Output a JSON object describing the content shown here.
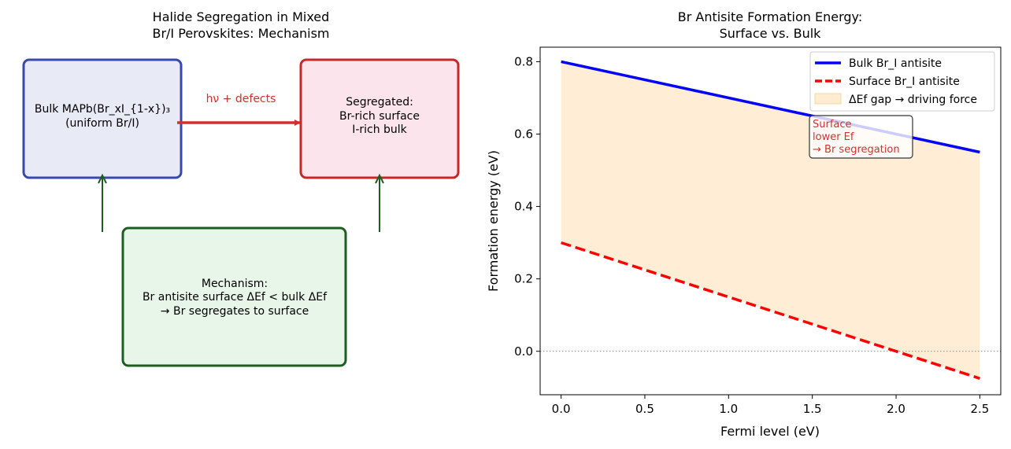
{
  "diagram": {
    "title_lines": [
      "Halide Segregation in Mixed",
      "Br/I Perovskites: Mechanism"
    ],
    "box_bulk": {
      "lines": [
        "Bulk MAPb(Br_xI_{1-x})₃",
        "(uniform Br/I)"
      ],
      "fill": "#e8eaf6",
      "stroke": "#3949ab"
    },
    "box_segregated": {
      "lines": [
        "Segregated:",
        "Br-rich surface",
        "I-rich bulk"
      ],
      "fill": "#fce4ec",
      "stroke": "#c62828"
    },
    "box_mechanism": {
      "lines": [
        "Mechanism:",
        "Br antisite surface ΔEf < bulk ΔEf",
        "→ Br segregates to surface"
      ],
      "fill": "#e8f5e9",
      "stroke": "#1b5e20"
    },
    "arrow_label": "hν + defects",
    "arrow_color": "#d32f2f",
    "support_arrow_color": "#1b5e20"
  },
  "chart_data": {
    "type": "line",
    "title_lines": [
      "Br Antisite Formation Energy:",
      "Surface vs. Bulk"
    ],
    "xlabel": "Fermi level (eV)",
    "ylabel": "Formation energy (eV)",
    "xlim": [
      -0.125,
      2.625
    ],
    "ylim": [
      -0.12,
      0.84
    ],
    "xticks": [
      0.0,
      0.5,
      1.0,
      1.5,
      2.0,
      2.5
    ],
    "xtick_labels": [
      "0.0",
      "0.5",
      "1.0",
      "1.5",
      "2.0",
      "2.5"
    ],
    "yticks": [
      0.0,
      0.2,
      0.4,
      0.6,
      0.8
    ],
    "ytick_labels": [
      "0.0",
      "0.2",
      "0.4",
      "0.6",
      "0.8"
    ],
    "series": [
      {
        "name": "Bulk Br_I antisite",
        "x": [
          0.0,
          2.5
        ],
        "y": [
          0.8,
          0.55
        ],
        "color": "#0000ff",
        "style": "solid"
      },
      {
        "name": "Surface Br_I antisite",
        "x": [
          0.0,
          2.5
        ],
        "y": [
          0.3,
          -0.075
        ],
        "color": "#ff0000",
        "style": "dashed"
      }
    ],
    "fill_between": {
      "name": "ΔEf gap → driving force",
      "color": "#ffe0b2"
    },
    "reference_line_y": 0.0,
    "annotation": {
      "lines": [
        "Surface",
        "lower Ef",
        "→ Br segregation"
      ],
      "color": "#d32f2f",
      "x": 1.5,
      "y": 0.6
    },
    "legend_position": "top-right"
  }
}
